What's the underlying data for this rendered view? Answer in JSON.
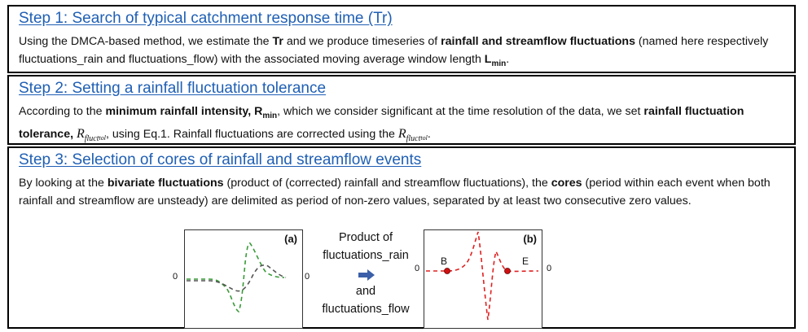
{
  "step1": {
    "title": "Step 1: Search of typical catchment response time (Tr)",
    "t1": "Using the DMCA-based method, we estimate the ",
    "b1": "Tr",
    "t2": " and we produce timeseries of ",
    "b2": "rainfall and streamflow fluctuations",
    "t3": " (named here respectively fluctuations_rain and fluctuations_flow) with the associated moving average window length ",
    "b3": "L",
    "b3sub": "min",
    "t4": "."
  },
  "step2": {
    "title": "Step 2: Setting a rainfall fluctuation tolerance",
    "t1": "According to the ",
    "b1": "minimum rainfall intensity, R",
    "b1sub": "min",
    "t2": ", which we consider significant at the time resolution of the data, we set ",
    "b2": "rainfall fluctuation tolerance, ",
    "sym": "R",
    "symsub": "fluct",
    "symsub2": "tol",
    "t3": ", using Eq.1. Rainfall fluctuations are corrected using the ",
    "t4": "."
  },
  "step3": {
    "title": "Step 3: Selection of cores of rainfall and streamflow events",
    "t1": "By looking at the ",
    "b1": "bivariate fluctuations",
    "t2": " (product of (corrected) rainfall and streamflow fluctuations), the ",
    "b2": "cores",
    "t3": " (period within each event when both rainfall and streamflow are unsteady) are delimited as period of non-zero values, separated by at least two consecutive zero values."
  },
  "figure": {
    "panel_a_label": "(a)",
    "panel_b_label": "(b)",
    "zero_label": "0",
    "middle_line1": "Product of",
    "middle_line2": "fluctuations_rain",
    "middle_line3": "and",
    "middle_line4": "fluctuations_flow",
    "point_begin": "B",
    "point_end": "E",
    "colors": {
      "rain": "#3a9a3a",
      "flow": "#555555",
      "product": "#e02020",
      "arrow": "#3b5fa8",
      "title": "#1f5fb4"
    }
  }
}
